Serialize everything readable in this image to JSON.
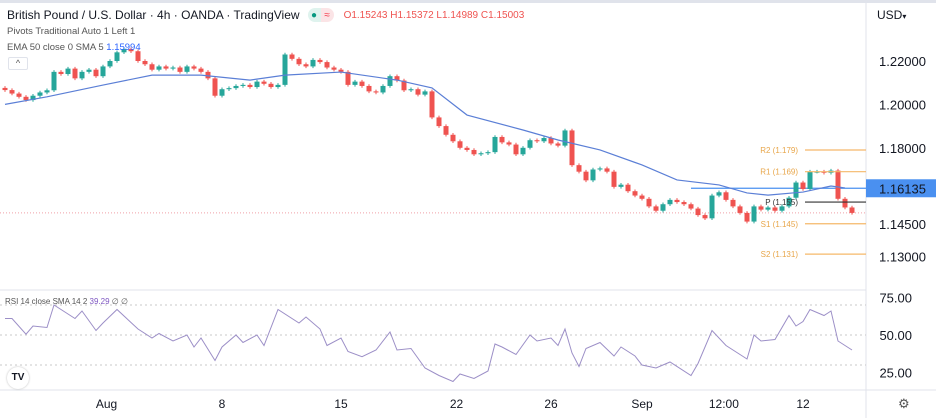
{
  "header": {
    "title": "British Pound / U.S. Dollar · 4h · OANDA · TradingView",
    "status_badges": [
      "market-open-dot",
      "delay-approx-icon"
    ],
    "status_symbols": [
      "●",
      "≈"
    ],
    "ohlc": "O1.15243 H1.15372 L1.14989 C1.15003",
    "pivots_label": "Pivots Traditional Auto 1 Left 1",
    "ema_label": "EMA 50 close 0 SMA 5",
    "ema_value": "1.15994",
    "collapse_symbol": "^"
  },
  "price_axis": {
    "currency": "USD",
    "currency_caret": "▾",
    "ticks": [
      {
        "value": 1.22,
        "label": "1.22000"
      },
      {
        "value": 1.2,
        "label": "1.20000"
      },
      {
        "value": 1.18,
        "label": "1.18000"
      },
      {
        "value": 1.145,
        "label": "1.14500"
      },
      {
        "value": 1.13,
        "label": "1.13000"
      }
    ],
    "highlight": {
      "value": 1.16135,
      "label": "1.16135"
    }
  },
  "rsi": {
    "legend": "RSI 14 close SMA 14 2",
    "value": "39.29",
    "extra": "∅ ∅",
    "ticks": [
      {
        "value": 75,
        "label": "75.00"
      },
      {
        "value": 50,
        "label": "50.00"
      },
      {
        "value": 25,
        "label": "25.00"
      }
    ]
  },
  "time_axis": {
    "ticks": [
      {
        "bar": 14.5,
        "label": "Aug"
      },
      {
        "bar": 31,
        "label": "8"
      },
      {
        "bar": 48,
        "label": "15"
      },
      {
        "bar": 64.5,
        "label": "22"
      },
      {
        "bar": 78,
        "label": "26"
      },
      {
        "bar": 91,
        "label": "Sep"
      },
      {
        "bar": 102.7,
        "label": "12:00"
      },
      {
        "bar": 114,
        "label": "12"
      }
    ]
  },
  "logo_text": "TV",
  "settings_symbol": "⚙",
  "colors": {
    "up": "#26a69a",
    "down": "#ef5350",
    "ema": "#5b7fd6",
    "rsi": "#9c8fc7",
    "pivot": "#f5b86a",
    "pivot_p": "#333333",
    "highlight": "#4a90f0"
  },
  "chart_data": {
    "type": "candlestick",
    "symbol": "GBPUSD",
    "interval": "4h",
    "ylim": [
      1.1335,
      1.2333
    ],
    "grid": false,
    "close": [
      1.2066,
      1.205,
      1.2035,
      1.202,
      1.204,
      1.2055,
      1.2065,
      1.215,
      1.214,
      1.2165,
      1.212,
      1.215,
      1.216,
      1.213,
      1.2175,
      1.22,
      1.224,
      1.2255,
      1.2245,
      1.22,
      1.2185,
      1.216,
      1.2175,
      1.2165,
      1.217,
      1.215,
      1.2175,
      1.2165,
      1.215,
      1.212,
      1.204,
      1.207,
      1.2075,
      1.2085,
      1.209,
      1.208,
      1.2105,
      1.2095,
      1.208,
      1.209,
      1.223,
      1.221,
      1.2185,
      1.2175,
      1.2205,
      1.2195,
      1.217,
      1.216,
      1.215,
      1.209,
      1.2105,
      1.2085,
      1.206,
      1.2055,
      1.2085,
      1.213,
      1.211,
      1.2065,
      1.207,
      1.2045,
      1.206,
      1.194,
      1.19,
      1.186,
      1.183,
      1.18,
      1.179,
      1.177,
      1.1775,
      1.178,
      1.185,
      1.1825,
      1.1815,
      1.177,
      1.18,
      1.1835,
      1.183,
      1.1845,
      1.182,
      1.181,
      1.188,
      1.172,
      1.169,
      1.165,
      1.17,
      1.1705,
      1.169,
      1.162,
      1.163,
      1.16,
      1.158,
      1.1565,
      1.153,
      1.151,
      1.154,
      1.156,
      1.155,
      1.154,
      1.152,
      1.149,
      1.1475,
      1.158,
      1.1595,
      1.156,
      1.153,
      1.15,
      1.146,
      1.153,
      1.1515,
      1.1525,
      1.151,
      1.153,
      1.157,
      1.164,
      1.161,
      1.169,
      1.169,
      1.1685,
      1.1695,
      1.1565,
      1.1525,
      1.15
    ],
    "ema50": [
      [
        0,
        1.2
      ],
      [
        6,
        1.2035
      ],
      [
        14,
        1.2089
      ],
      [
        21,
        1.2135
      ],
      [
        28,
        1.2135
      ],
      [
        35,
        1.2112
      ],
      [
        40,
        1.2135
      ],
      [
        48,
        1.2149
      ],
      [
        56,
        1.2112
      ],
      [
        61,
        1.2076
      ],
      [
        66,
        1.1951
      ],
      [
        74,
        1.1882
      ],
      [
        79,
        1.1836
      ],
      [
        85,
        1.179
      ],
      [
        91,
        1.1721
      ],
      [
        96,
        1.1652
      ],
      [
        102,
        1.1629
      ],
      [
        106,
        1.1592
      ],
      [
        109,
        1.1582
      ],
      [
        114,
        1.1596
      ],
      [
        118,
        1.1624
      ],
      [
        120,
        1.1615
      ]
    ],
    "pivots": [
      {
        "label": "R2 (1.179)",
        "value": 1.179
      },
      {
        "label": "R1 (1.169)",
        "value": 1.169
      },
      {
        "label": "P (1.155)",
        "value": 1.155
      },
      {
        "label": "S1 (1.145)",
        "value": 1.145
      },
      {
        "label": "S2 (1.131)",
        "value": 1.131
      }
    ],
    "horizontal_line": {
      "value": 1.16135,
      "from_bar": 98
    },
    "last_price": 1.15003,
    "rsi_series": [
      [
        0,
        61
      ],
      [
        1,
        61
      ],
      [
        3,
        50.5
      ],
      [
        4,
        56
      ],
      [
        6,
        55
      ],
      [
        7,
        70
      ],
      [
        10,
        61
      ],
      [
        11,
        66
      ],
      [
        13,
        53
      ],
      [
        14,
        58
      ],
      [
        16,
        67
      ],
      [
        19,
        54
      ],
      [
        21,
        48
      ],
      [
        22,
        51
      ],
      [
        24,
        46
      ],
      [
        26,
        50
      ],
      [
        27,
        42
      ],
      [
        28,
        48
      ],
      [
        30,
        33
      ],
      [
        31,
        42
      ],
      [
        33,
        50
      ],
      [
        34,
        45
      ],
      [
        36,
        50
      ],
      [
        37,
        43
      ],
      [
        39,
        67
      ],
      [
        42,
        58
      ],
      [
        43,
        62
      ],
      [
        45,
        54
      ],
      [
        46,
        43
      ],
      [
        48,
        48
      ],
      [
        49,
        39
      ],
      [
        51,
        35.5
      ],
      [
        53,
        40
      ],
      [
        55,
        52
      ],
      [
        56,
        40
      ],
      [
        58,
        41
      ],
      [
        60,
        28
      ],
      [
        62,
        23
      ],
      [
        64,
        19
      ],
      [
        65,
        24
      ],
      [
        67,
        21
      ],
      [
        69,
        26
      ],
      [
        70,
        44
      ],
      [
        71,
        42
      ],
      [
        73,
        37
      ],
      [
        75,
        50
      ],
      [
        76,
        46
      ],
      [
        78,
        48
      ],
      [
        79,
        43
      ],
      [
        80,
        54
      ],
      [
        81,
        38
      ],
      [
        82,
        29
      ],
      [
        83,
        41
      ],
      [
        85,
        45
      ],
      [
        87,
        36
      ],
      [
        88,
        42
      ],
      [
        90,
        36
      ],
      [
        91,
        30
      ],
      [
        93,
        28
      ],
      [
        95,
        32
      ],
      [
        98,
        23
      ],
      [
        99,
        31
      ],
      [
        101,
        53
      ],
      [
        103,
        43
      ],
      [
        105,
        37
      ],
      [
        106,
        34
      ],
      [
        107,
        50
      ],
      [
        108,
        46
      ],
      [
        110,
        47
      ],
      [
        112,
        63
      ],
      [
        113,
        56
      ],
      [
        114,
        59
      ],
      [
        115,
        67
      ],
      [
        117,
        63
      ],
      [
        118,
        66
      ],
      [
        119,
        46
      ],
      [
        121,
        40
      ]
    ],
    "rsi_bands": [
      70,
      50,
      30
    ],
    "rsi_ylim": [
      0,
      100
    ]
  }
}
